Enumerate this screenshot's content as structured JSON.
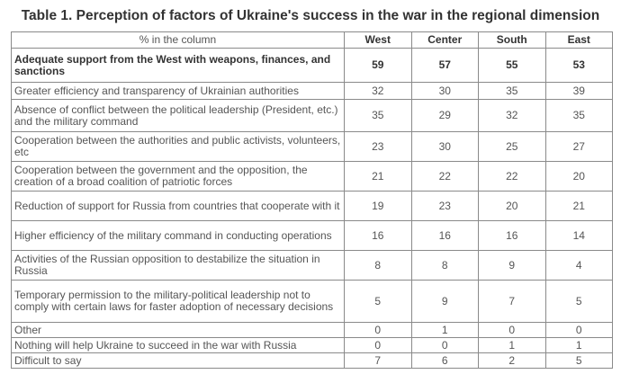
{
  "title": "Table 1. Perception of factors of Ukraine's success in the war in the regional dimension",
  "table": {
    "header_label": "% in the column",
    "columns": [
      "West",
      "Center",
      "South",
      "East"
    ],
    "rows": [
      {
        "label": "Adequate support from the West with weapons, finances, and sanctions",
        "values": [
          "59",
          "57",
          "55",
          "53"
        ],
        "bold": true
      },
      {
        "label": "Greater efficiency and transparency of Ukrainian authorities",
        "values": [
          "32",
          "30",
          "35",
          "39"
        ]
      },
      {
        "label": "Absence of conflict between the political leadership (President, etc.) and the military command",
        "values": [
          "35",
          "29",
          "32",
          "35"
        ]
      },
      {
        "label": "Cooperation between the authorities and public activists, volunteers, etc",
        "values": [
          "23",
          "30",
          "25",
          "27"
        ]
      },
      {
        "label": "Cooperation between the government and the opposition, the creation of a broad coalition of patriotic forces",
        "values": [
          "21",
          "22",
          "22",
          "20"
        ]
      },
      {
        "label": "Reduction of support for Russia from countries that cooperate with it",
        "values": [
          "19",
          "23",
          "20",
          "21"
        ]
      },
      {
        "label": "Higher efficiency of the military command in conducting operations",
        "values": [
          "16",
          "16",
          "16",
          "14"
        ]
      },
      {
        "label": "Activities of the Russian opposition to destabilize the situation in Russia",
        "values": [
          "8",
          "8",
          "9",
          "4"
        ]
      },
      {
        "label": "Temporary permission to the military-political leadership not to comply with certain laws for faster adoption of necessary decisions",
        "values": [
          "5",
          "9",
          "7",
          "5"
        ]
      },
      {
        "label": "Other",
        "values": [
          "0",
          "1",
          "0",
          "0"
        ]
      },
      {
        "label": "Nothing will help Ukraine to succeed in the war with Russia",
        "values": [
          "0",
          "0",
          "1",
          "1"
        ]
      },
      {
        "label": "Difficult to say",
        "values": [
          "7",
          "6",
          "2",
          "5"
        ]
      }
    ]
  }
}
